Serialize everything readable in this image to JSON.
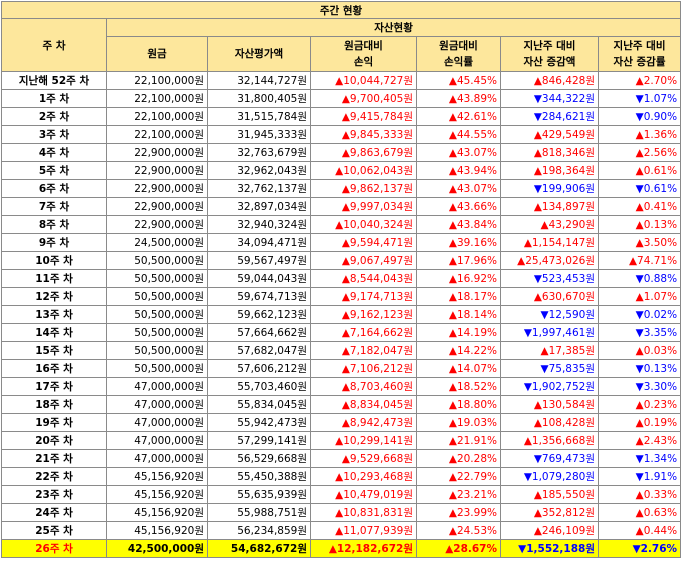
{
  "title": "주간 현황",
  "header": {
    "week": "주 차",
    "group": "자산현황",
    "principal": "원금",
    "valuation": "자산평가액",
    "pl_vs_principal": [
      "원금대비",
      "손익"
    ],
    "rate_vs_principal": [
      "원금대비",
      "손익률"
    ],
    "change_vs_last": [
      "지난주 대비",
      "자산 증감액"
    ],
    "rate_vs_last": [
      "지난주 대비",
      "자산 증감률"
    ]
  },
  "colors": {
    "header_bg": "#fde79c",
    "positive": "#ff0000",
    "negative": "#0000ff",
    "highlight_bg": "#ffff00"
  },
  "rows": [
    {
      "week": "지난해 52주 차",
      "principal": "22,100,000원",
      "valuation": "32,144,727원",
      "pl": "▲10,044,727원",
      "pl_rate": "▲45.45%",
      "change": "▲846,428원",
      "change_rate": "▲2.70%",
      "pl_dir": "pos",
      "chg_dir": "pos"
    },
    {
      "week": "1주 차",
      "principal": "22,100,000원",
      "valuation": "31,800,405원",
      "pl": "▲9,700,405원",
      "pl_rate": "▲43.89%",
      "change": "▼344,322원",
      "change_rate": "▼1.07%",
      "pl_dir": "pos",
      "chg_dir": "neg"
    },
    {
      "week": "2주 차",
      "principal": "22,100,000원",
      "valuation": "31,515,784원",
      "pl": "▲9,415,784원",
      "pl_rate": "▲42.61%",
      "change": "▼284,621원",
      "change_rate": "▼0.90%",
      "pl_dir": "pos",
      "chg_dir": "neg"
    },
    {
      "week": "3주 차",
      "principal": "22,100,000원",
      "valuation": "31,945,333원",
      "pl": "▲9,845,333원",
      "pl_rate": "▲44.55%",
      "change": "▲429,549원",
      "change_rate": "▲1.36%",
      "pl_dir": "pos",
      "chg_dir": "pos"
    },
    {
      "week": "4주 차",
      "principal": "22,900,000원",
      "valuation": "32,763,679원",
      "pl": "▲9,863,679원",
      "pl_rate": "▲43.07%",
      "change": "▲818,346원",
      "change_rate": "▲2.56%",
      "pl_dir": "pos",
      "chg_dir": "pos"
    },
    {
      "week": "5주 차",
      "principal": "22,900,000원",
      "valuation": "32,962,043원",
      "pl": "▲10,062,043원",
      "pl_rate": "▲43.94%",
      "change": "▲198,364원",
      "change_rate": "▲0.61%",
      "pl_dir": "pos",
      "chg_dir": "pos"
    },
    {
      "week": "6주 차",
      "principal": "22,900,000원",
      "valuation": "32,762,137원",
      "pl": "▲9,862,137원",
      "pl_rate": "▲43.07%",
      "change": "▼199,906원",
      "change_rate": "▼0.61%",
      "pl_dir": "pos",
      "chg_dir": "neg"
    },
    {
      "week": "7주 차",
      "principal": "22,900,000원",
      "valuation": "32,897,034원",
      "pl": "▲9,997,034원",
      "pl_rate": "▲43.66%",
      "change": "▲134,897원",
      "change_rate": "▲0.41%",
      "pl_dir": "pos",
      "chg_dir": "pos"
    },
    {
      "week": "8주 차",
      "principal": "22,900,000원",
      "valuation": "32,940,324원",
      "pl": "▲10,040,324원",
      "pl_rate": "▲43.84%",
      "change": "▲43,290원",
      "change_rate": "▲0.13%",
      "pl_dir": "pos",
      "chg_dir": "pos"
    },
    {
      "week": "9주 차",
      "principal": "24,500,000원",
      "valuation": "34,094,471원",
      "pl": "▲9,594,471원",
      "pl_rate": "▲39.16%",
      "change": "▲1,154,147원",
      "change_rate": "▲3.50%",
      "pl_dir": "pos",
      "chg_dir": "pos"
    },
    {
      "week": "10주 차",
      "principal": "50,500,000원",
      "valuation": "59,567,497원",
      "pl": "▲9,067,497원",
      "pl_rate": "▲17.96%",
      "change": "▲25,473,026원",
      "change_rate": "▲74.71%",
      "pl_dir": "pos",
      "chg_dir": "pos"
    },
    {
      "week": "11주 차",
      "principal": "50,500,000원",
      "valuation": "59,044,043원",
      "pl": "▲8,544,043원",
      "pl_rate": "▲16.92%",
      "change": "▼523,453원",
      "change_rate": "▼0.88%",
      "pl_dir": "pos",
      "chg_dir": "neg"
    },
    {
      "week": "12주 차",
      "principal": "50,500,000원",
      "valuation": "59,674,713원",
      "pl": "▲9,174,713원",
      "pl_rate": "▲18.17%",
      "change": "▲630,670원",
      "change_rate": "▲1.07%",
      "pl_dir": "pos",
      "chg_dir": "pos"
    },
    {
      "week": "13주 차",
      "principal": "50,500,000원",
      "valuation": "59,662,123원",
      "pl": "▲9,162,123원",
      "pl_rate": "▲18.14%",
      "change": "▼12,590원",
      "change_rate": "▼0.02%",
      "pl_dir": "pos",
      "chg_dir": "neg"
    },
    {
      "week": "14주 차",
      "principal": "50,500,000원",
      "valuation": "57,664,662원",
      "pl": "▲7,164,662원",
      "pl_rate": "▲14.19%",
      "change": "▼1,997,461원",
      "change_rate": "▼3.35%",
      "pl_dir": "pos",
      "chg_dir": "neg"
    },
    {
      "week": "15주 차",
      "principal": "50,500,000원",
      "valuation": "57,682,047원",
      "pl": "▲7,182,047원",
      "pl_rate": "▲14.22%",
      "change": "▲17,385원",
      "change_rate": "▲0.03%",
      "pl_dir": "pos",
      "chg_dir": "pos"
    },
    {
      "week": "16주 차",
      "principal": "50,500,000원",
      "valuation": "57,606,212원",
      "pl": "▲7,106,212원",
      "pl_rate": "▲14.07%",
      "change": "▼75,835원",
      "change_rate": "▼0.13%",
      "pl_dir": "pos",
      "chg_dir": "neg"
    },
    {
      "week": "17주 차",
      "principal": "47,000,000원",
      "valuation": "55,703,460원",
      "pl": "▲8,703,460원",
      "pl_rate": "▲18.52%",
      "change": "▼1,902,752원",
      "change_rate": "▼3.30%",
      "pl_dir": "pos",
      "chg_dir": "neg"
    },
    {
      "week": "18주 차",
      "principal": "47,000,000원",
      "valuation": "55,834,045원",
      "pl": "▲8,834,045원",
      "pl_rate": "▲18.80%",
      "change": "▲130,584원",
      "change_rate": "▲0.23%",
      "pl_dir": "pos",
      "chg_dir": "pos"
    },
    {
      "week": "19주 차",
      "principal": "47,000,000원",
      "valuation": "55,942,473원",
      "pl": "▲8,942,473원",
      "pl_rate": "▲19.03%",
      "change": "▲108,428원",
      "change_rate": "▲0.19%",
      "pl_dir": "pos",
      "chg_dir": "pos"
    },
    {
      "week": "20주 차",
      "principal": "47,000,000원",
      "valuation": "57,299,141원",
      "pl": "▲10,299,141원",
      "pl_rate": "▲21.91%",
      "change": "▲1,356,668원",
      "change_rate": "▲2.43%",
      "pl_dir": "pos",
      "chg_dir": "pos"
    },
    {
      "week": "21주 차",
      "principal": "47,000,000원",
      "valuation": "56,529,668원",
      "pl": "▲9,529,668원",
      "pl_rate": "▲20.28%",
      "change": "▼769,473원",
      "change_rate": "▼1.34%",
      "pl_dir": "pos",
      "chg_dir": "neg"
    },
    {
      "week": "22주 차",
      "principal": "45,156,920원",
      "valuation": "55,450,388원",
      "pl": "▲10,293,468원",
      "pl_rate": "▲22.79%",
      "change": "▼1,079,280원",
      "change_rate": "▼1.91%",
      "pl_dir": "pos",
      "chg_dir": "neg"
    },
    {
      "week": "23주 차",
      "principal": "45,156,920원",
      "valuation": "55,635,939원",
      "pl": "▲10,479,019원",
      "pl_rate": "▲23.21%",
      "change": "▲185,550원",
      "change_rate": "▲0.33%",
      "pl_dir": "pos",
      "chg_dir": "pos"
    },
    {
      "week": "24주 차",
      "principal": "45,156,920원",
      "valuation": "55,988,751원",
      "pl": "▲10,831,831원",
      "pl_rate": "▲23.99%",
      "change": "▲352,812원",
      "change_rate": "▲0.63%",
      "pl_dir": "pos",
      "chg_dir": "pos"
    },
    {
      "week": "25주 차",
      "principal": "45,156,920원",
      "valuation": "56,234,859원",
      "pl": "▲11,077,939원",
      "pl_rate": "▲24.53%",
      "change": "▲246,109원",
      "change_rate": "▲0.44%",
      "pl_dir": "pos",
      "chg_dir": "pos"
    },
    {
      "week": "26주 차",
      "principal": "42,500,000원",
      "valuation": "54,682,672원",
      "pl": "▲12,182,672원",
      "pl_rate": "▲28.67%",
      "change": "▼1,552,188원",
      "change_rate": "▼2.76%",
      "pl_dir": "pos",
      "chg_dir": "neg",
      "highlight": true
    }
  ]
}
